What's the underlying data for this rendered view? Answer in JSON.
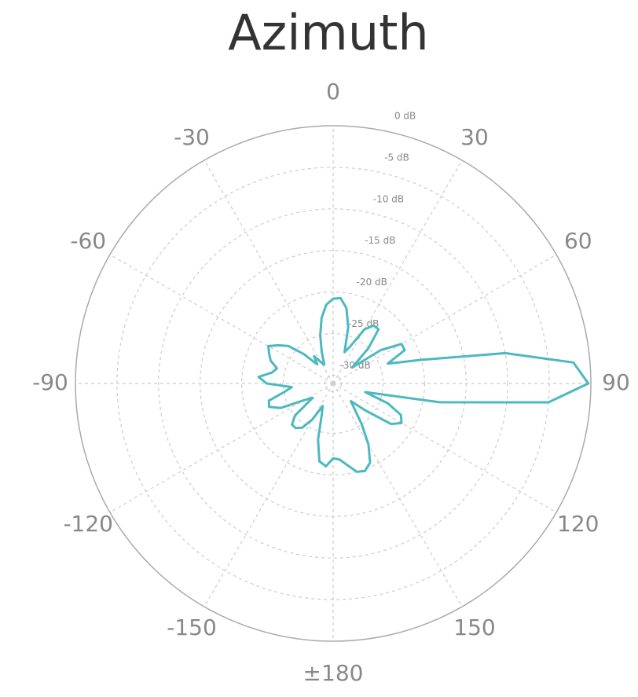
{
  "chart_data": {
    "type": "polar",
    "title": "Azimuth",
    "theta_zero": "top",
    "theta_direction": "clockwise",
    "theta": [
      -180,
      -175,
      -170,
      -165,
      -160,
      -155,
      -150,
      -145,
      -140,
      -135,
      -130,
      -125,
      -120,
      -115,
      -110,
      -105,
      -100,
      -95,
      -90,
      -85,
      -80,
      -75,
      -70,
      -65,
      -60,
      -55,
      -50,
      -45,
      -40,
      -35,
      -30,
      -25,
      -20,
      -15,
      -10,
      -5,
      0,
      5,
      10,
      15,
      20,
      25,
      30,
      35,
      40,
      45,
      50,
      55,
      60,
      65,
      70,
      75,
      80,
      85,
      90,
      95,
      100,
      105,
      110,
      115,
      120,
      125,
      130,
      135,
      140,
      145,
      150,
      155,
      160,
      165,
      170,
      175
    ],
    "values": [
      -22,
      -21,
      -21.5,
      -24,
      -27,
      -28,
      -26,
      -24.5,
      -24,
      -24,
      -25,
      -28,
      -27,
      -24,
      -22.8,
      -23,
      -25,
      -26,
      -23,
      -22,
      -23.5,
      -24,
      -23,
      -22.5,
      -22,
      -23,
      -24,
      -26,
      -28,
      -27,
      -28,
      -28.5,
      -27,
      -25,
      -23,
      -21.5,
      -20.8,
      -20.7,
      -21.8,
      -24,
      -27,
      -26,
      -23.5,
      -22.5,
      -22.5,
      -25,
      -28,
      -24,
      -21.5,
      -21.5,
      -24,
      -20,
      -10,
      -2,
      -0.3,
      -5,
      -18,
      -27,
      -24,
      -22,
      -21.5,
      -22.5,
      -26,
      -28,
      -27,
      -25,
      -22.5,
      -20.5,
      -19.8,
      -20,
      -21,
      -21.8
    ],
    "color": "#4cb8c0",
    "rlim": [
      -31,
      0
    ],
    "rticks": [
      {
        "value": 0,
        "label": "0 dB"
      },
      {
        "value": -5,
        "label": "-5 dB"
      },
      {
        "value": -10,
        "label": "-10 dB"
      },
      {
        "value": -15,
        "label": "-15 dB"
      },
      {
        "value": -20,
        "label": "-20 dB"
      },
      {
        "value": -25,
        "label": "-25 dB"
      },
      {
        "value": -30,
        "label": "-30 dB"
      }
    ],
    "thetaticks": [
      0,
      30,
      60,
      90,
      120,
      150,
      {
        "value": 180,
        "label": "±180"
      },
      -150,
      -120,
      -90,
      -60,
      -30
    ],
    "grid": true
  }
}
